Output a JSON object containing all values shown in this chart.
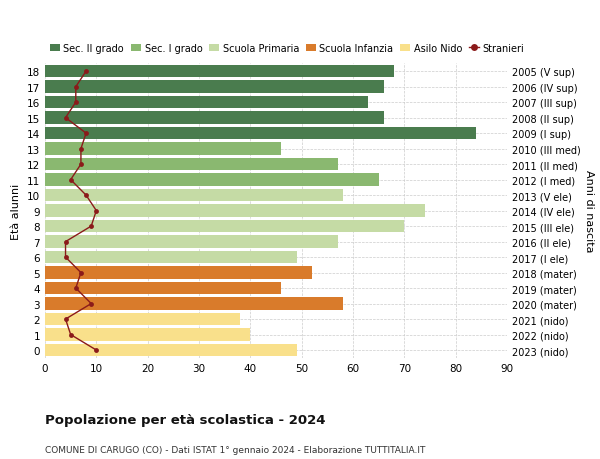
{
  "ages": [
    0,
    1,
    2,
    3,
    4,
    5,
    6,
    7,
    8,
    9,
    10,
    11,
    12,
    13,
    14,
    15,
    16,
    17,
    18
  ],
  "years": [
    "2023 (nido)",
    "2022 (nido)",
    "2021 (nido)",
    "2020 (mater)",
    "2019 (mater)",
    "2018 (mater)",
    "2017 (I ele)",
    "2016 (II ele)",
    "2015 (III ele)",
    "2014 (IV ele)",
    "2013 (V ele)",
    "2012 (I med)",
    "2011 (II med)",
    "2010 (III med)",
    "2009 (I sup)",
    "2008 (II sup)",
    "2007 (III sup)",
    "2006 (IV sup)",
    "2005 (V sup)"
  ],
  "bar_values": [
    49,
    40,
    38,
    58,
    46,
    52,
    49,
    57,
    70,
    74,
    58,
    65,
    57,
    46,
    84,
    66,
    63,
    66,
    68
  ],
  "bar_colors": [
    "#f9e08b",
    "#f9e08b",
    "#f9e08b",
    "#d97b2b",
    "#d97b2b",
    "#d97b2b",
    "#c5dba5",
    "#c5dba5",
    "#c5dba5",
    "#c5dba5",
    "#c5dba5",
    "#8ab870",
    "#8ab870",
    "#8ab870",
    "#4a7c4e",
    "#4a7c4e",
    "#4a7c4e",
    "#4a7c4e",
    "#4a7c4e"
  ],
  "stranieri_values": [
    10,
    5,
    4,
    9,
    6,
    7,
    4,
    4,
    9,
    10,
    8,
    5,
    7,
    7,
    8,
    4,
    6,
    6,
    8
  ],
  "stranieri_color": "#8b1a1a",
  "legend_labels": [
    "Sec. II grado",
    "Sec. I grado",
    "Scuola Primaria",
    "Scuola Infanzia",
    "Asilo Nido",
    "Stranieri"
  ],
  "legend_colors": [
    "#4a7c4e",
    "#8ab870",
    "#c5dba5",
    "#d97b2b",
    "#f9e08b",
    "#8b1a1a"
  ],
  "title": "Popolazione per età scolastica - 2024",
  "subtitle": "COMUNE DI CARUGO (CO) - Dati ISTAT 1° gennaio 2024 - Elaborazione TUTTITALIA.IT",
  "ylabel_left": "Età alunni",
  "ylabel_right": "Anni di nascita",
  "xlim": [
    0,
    90
  ],
  "xticks": [
    0,
    10,
    20,
    30,
    40,
    50,
    60,
    70,
    80,
    90
  ],
  "bar_height": 0.8,
  "background_color": "#ffffff",
  "grid_color": "#cccccc"
}
